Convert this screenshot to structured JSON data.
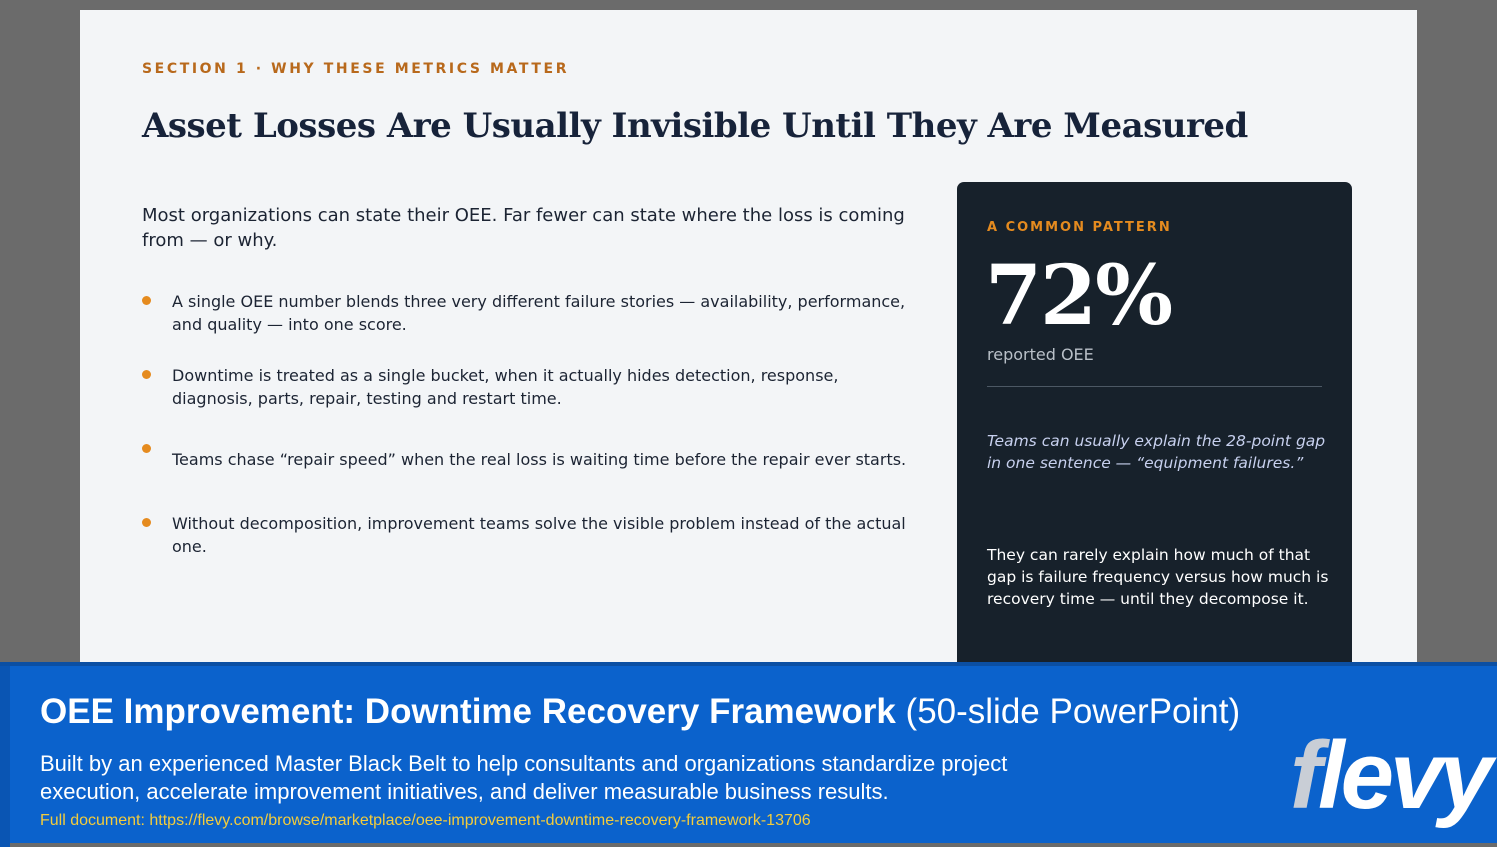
{
  "slide": {
    "eyebrow": "SECTION 1 · WHY THESE METRICS MATTER",
    "title": "Asset Losses Are Usually Invisible Until They Are Measured",
    "lead": "Most organizations can state their OEE. Far fewer can state where the loss is coming from — or why.",
    "bullets": [
      "A single OEE number blends three very different failure stories — availability, performance, and quality — into one score.",
      "Downtime is treated as a single bucket, when it actually hides detection, response, diagnosis, parts, repair, testing and restart time.",
      "Teams chase “repair speed” when the real loss is waiting time before the repair ever starts.",
      "Without decomposition, improvement teams solve the visible problem instead of the actual one."
    ],
    "card": {
      "kicker": "A COMMON PATTERN",
      "big_value": "72%",
      "sub": "reported OEE",
      "quote": "Teams can usually explain the 28-point gap in one sentence — “equipment failures.”",
      "body": "They can rarely explain how much of that gap is failure frequency versus how much is recovery time — until they decompose it."
    }
  },
  "banner": {
    "title_bold": "OEE Improvement: Downtime Recovery Framework",
    "title_light": " (50-slide PowerPoint)",
    "description": "Built by an experienced Master Black Belt to help consultants and organizations standardize project execution, accelerate improvement initiatives, and deliver measurable business results.",
    "link": "Full document: https://flevy.com/browse/marketplace/oee-improvement-downtime-recovery-framework-13706",
    "logo": "flevy"
  },
  "colors": {
    "accent_orange": "#e58b1f",
    "banner_blue": "#0b62cc",
    "card_dark": "#17212b",
    "link_yellow": "#f3cc3c"
  }
}
